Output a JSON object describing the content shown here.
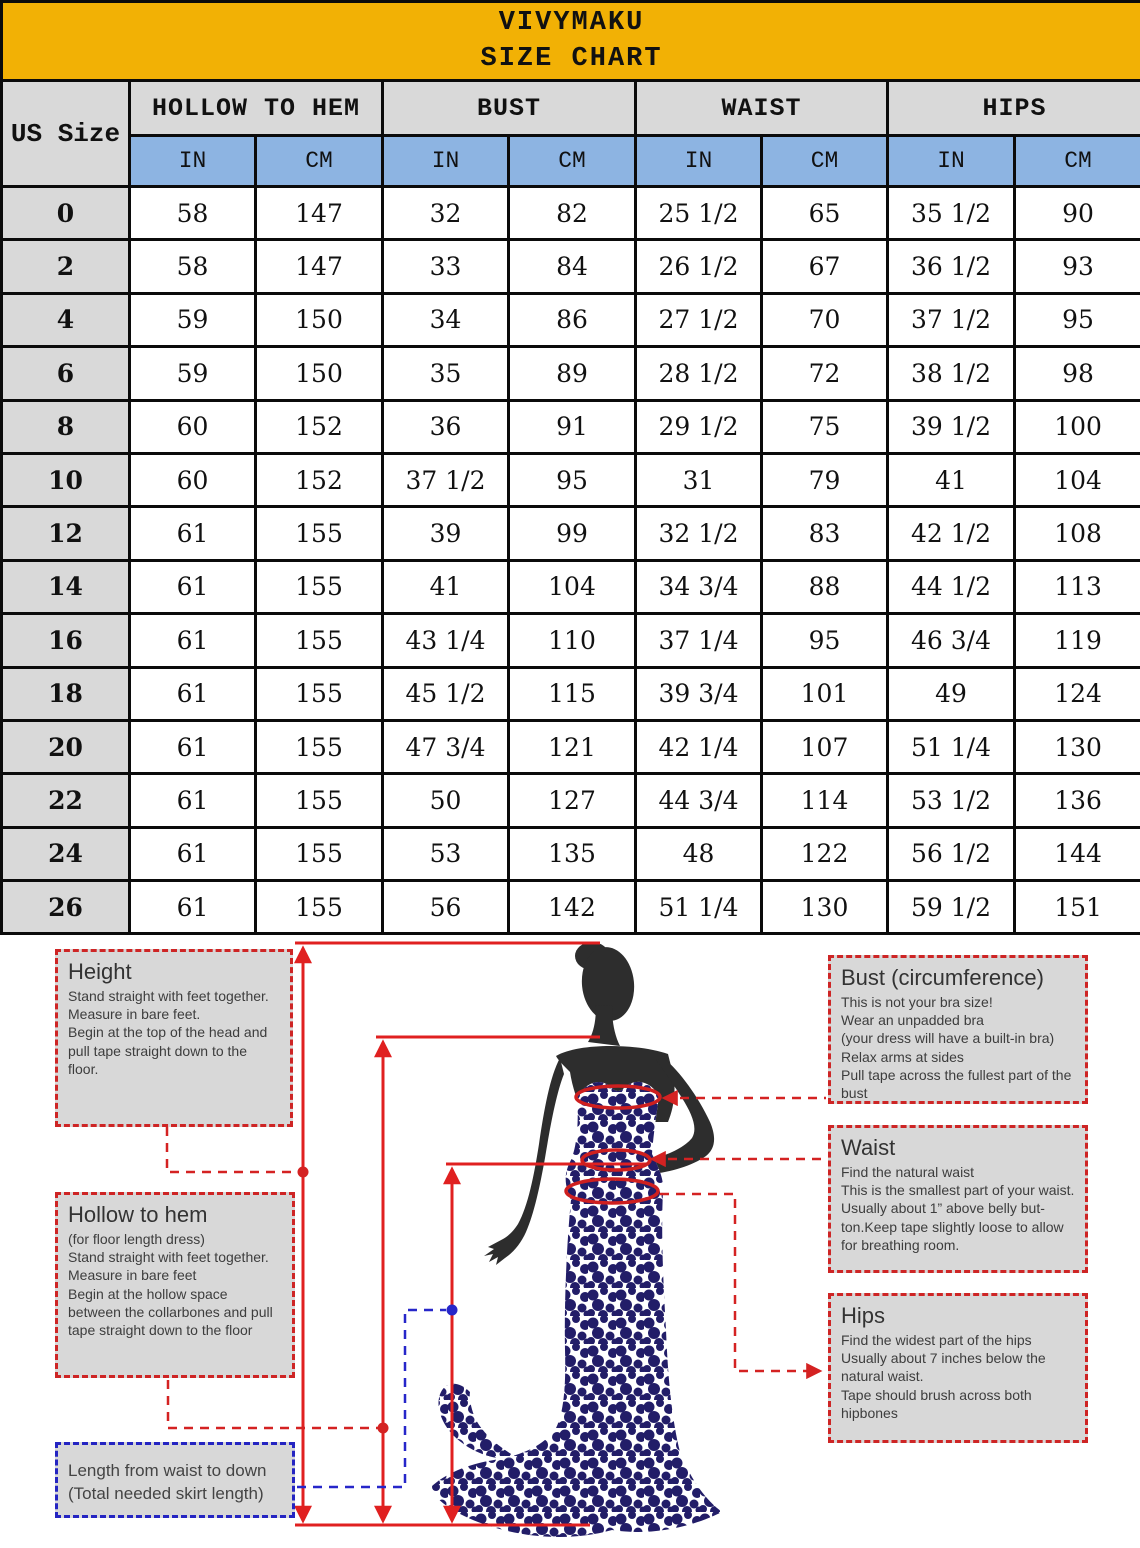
{
  "title": {
    "brand": "VIVYMAKU",
    "subtitle": "SIZE CHART"
  },
  "table": {
    "size_col_header": "US Size",
    "groups": [
      "HOLLOW TO HEM",
      "BUST",
      "WAIST",
      "HIPS"
    ],
    "units": [
      "IN",
      "CM",
      "IN",
      "CM",
      "IN",
      "CM",
      "IN",
      "CM"
    ],
    "rows": [
      [
        "0",
        "58",
        "147",
        "32",
        "82",
        "25 1/2",
        "65",
        "35 1/2",
        "90"
      ],
      [
        "2",
        "58",
        "147",
        "33",
        "84",
        "26 1/2",
        "67",
        "36 1/2",
        "93"
      ],
      [
        "4",
        "59",
        "150",
        "34",
        "86",
        "27 1/2",
        "70",
        "37 1/2",
        "95"
      ],
      [
        "6",
        "59",
        "150",
        "35",
        "89",
        "28 1/2",
        "72",
        "38 1/2",
        "98"
      ],
      [
        "8",
        "60",
        "152",
        "36",
        "91",
        "29 1/2",
        "75",
        "39 1/2",
        "100"
      ],
      [
        "10",
        "60",
        "152",
        "37 1/2",
        "95",
        "31",
        "79",
        "41",
        "104"
      ],
      [
        "12",
        "61",
        "155",
        "39",
        "99",
        "32 1/2",
        "83",
        "42 1/2",
        "108"
      ],
      [
        "14",
        "61",
        "155",
        "41",
        "104",
        "34 3/4",
        "88",
        "44 1/2",
        "113"
      ],
      [
        "16",
        "61",
        "155",
        "43 1/4",
        "110",
        "37 1/4",
        "95",
        "46 3/4",
        "119"
      ],
      [
        "18",
        "61",
        "155",
        "45 1/2",
        "115",
        "39 3/4",
        "101",
        "49",
        "124"
      ],
      [
        "20",
        "61",
        "155",
        "47 3/4",
        "121",
        "42 1/4",
        "107",
        "51 1/4",
        "130"
      ],
      [
        "22",
        "61",
        "155",
        "50",
        "127",
        "44 3/4",
        "114",
        "53 1/2",
        "136"
      ],
      [
        "24",
        "61",
        "155",
        "53",
        "135",
        "48",
        "122",
        "56 1/2",
        "144"
      ],
      [
        "26",
        "61",
        "155",
        "56",
        "142",
        "51 1/4",
        "130",
        "59 1/2",
        "151"
      ]
    ]
  },
  "boxes": {
    "height": {
      "title": "Height",
      "body": "Stand straight with feet together.\nMeasure in bare feet.\nBegin at the top of the head and pull tape straight down to the floor."
    },
    "hollow_to_hem": {
      "title": "Hollow to hem",
      "body": "(for floor length dress)\nStand straight with feet together. Measure in bare feet\nBegin at the hollow space between the collarbones and pull tape straight down to the floor"
    },
    "skirt_length": {
      "body": "Length from waist to down\n(Total needed skirt length)"
    },
    "bust": {
      "title": "Bust (circumference)",
      "body": "This is not your bra size!\nWear an unpadded bra\n(your dress will have a built-in bra)\nRelax arms at sides\nPull tape across the fullest part of the bust"
    },
    "waist": {
      "title": "Waist",
      "body": "Find the natural waist\nThis is the smallest part of your waist.\nUsually about 1” above belly but-ton.Keep tape slightly loose to allow for breathing room."
    },
    "hips": {
      "title": "Hips",
      "body": "Find the widest part of the hips\nUsually about 7 inches below the natural waist.\nTape should brush across both hipbones"
    }
  },
  "colors": {
    "title_bg": "#F2B105",
    "unit_row_bg": "#8DB4E2",
    "label_bg": "#D9D9D9",
    "line_red": "#E02020",
    "dashed_red": "#D42222",
    "dashed_blue": "#2626C9",
    "dress_navy": "#221D68",
    "silhouette": "#2D2D2D"
  }
}
